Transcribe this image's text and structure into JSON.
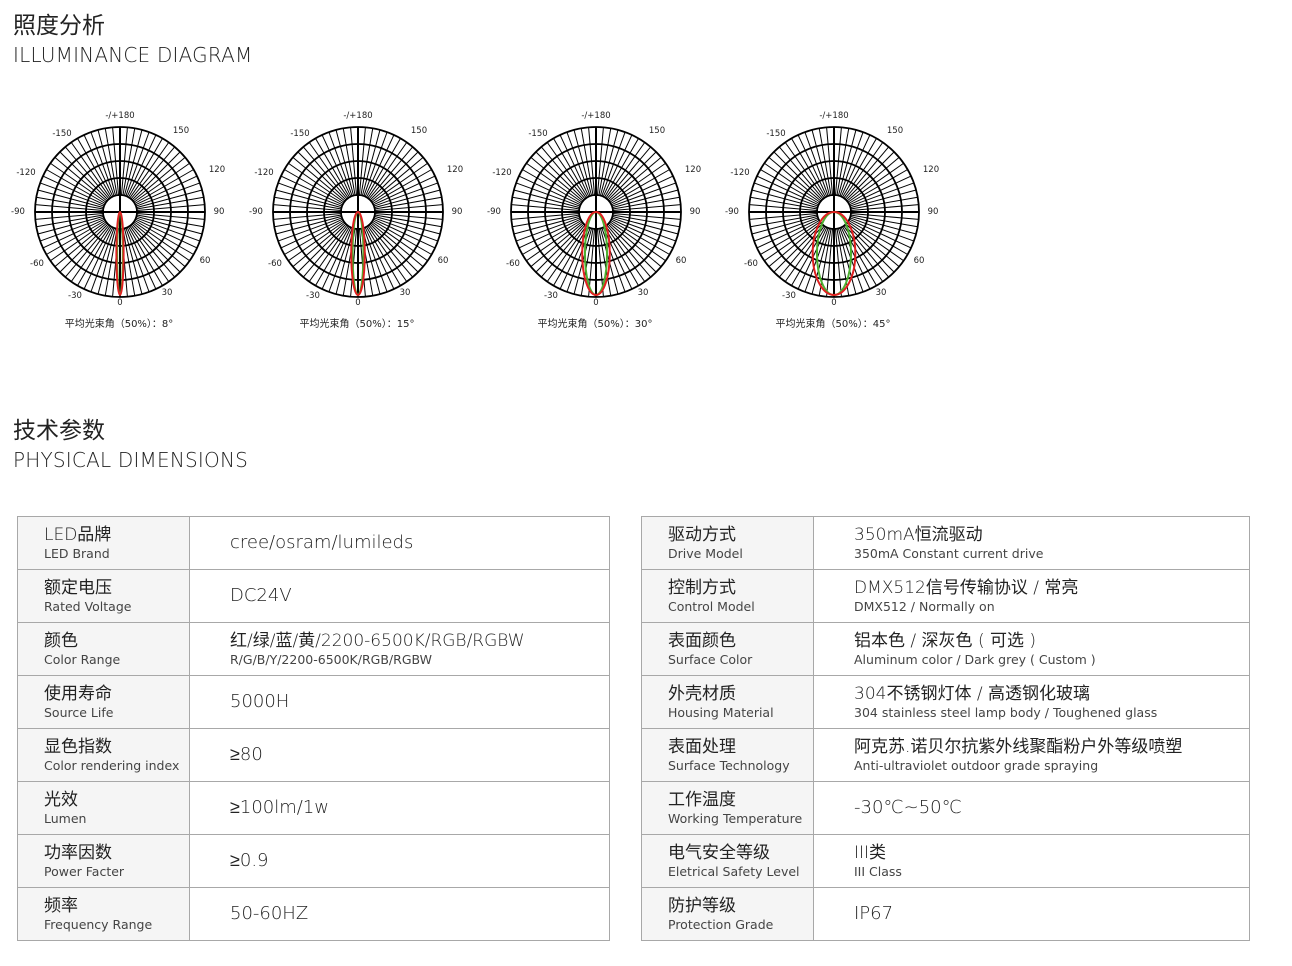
{
  "illuminance": {
    "title_cn": "照度分析",
    "title_en": "ILLUMINANCE DIAGRAM",
    "angle_labels": {
      "top": "-/+180",
      "n150": "-150",
      "p150": "150",
      "n120": "-120",
      "p120": "120",
      "n90": "-90",
      "p90": "90",
      "n60": "-60",
      "p60": "60",
      "n30": "-30",
      "p30": "30",
      "zero": "0"
    },
    "diagrams": [
      {
        "caption": "平均光束角（50%）：8°",
        "beam_angle": 8
      },
      {
        "caption": "平均光束角（50%）：15°",
        "beam_angle": 15
      },
      {
        "caption": "平均光束角（50%）：30°",
        "beam_angle": 30
      },
      {
        "caption": "平均光束角（50%）：45°",
        "beam_angle": 45
      }
    ],
    "colors": {
      "curve_a": "#e02020",
      "curve_b": "#4caf30"
    }
  },
  "specs": {
    "title_cn": "技术参数",
    "title_en": "PHYSICAL DIMENSIONS",
    "left": [
      {
        "cn": "LED品牌",
        "en": "LED Brand",
        "value": "cree/osram/lumileds",
        "value_en": ""
      },
      {
        "cn": "额定电压",
        "en": "Rated Voltage",
        "value": "DC24V",
        "value_en": ""
      },
      {
        "cn": "颜色",
        "en": "Color Range",
        "value": "红/绿/蓝/黄/2200-6500K/RGB/RGBW",
        "value_en": "R/G/B/Y/2200-6500K/RGB/RGBW"
      },
      {
        "cn": "使用寿命",
        "en": "Source Life",
        "value": "5000H",
        "value_en": ""
      },
      {
        "cn": "显色指数",
        "en": "Color rendering index",
        "value": "≥80",
        "value_en": ""
      },
      {
        "cn": "光效",
        "en": "Lumen",
        "value": "≥100lm/1w",
        "value_en": ""
      },
      {
        "cn": "功率因数",
        "en": "Power Facter",
        "value": "≥0.9",
        "value_en": ""
      },
      {
        "cn": "频率",
        "en": "Frequency Range",
        "value": "50-60HZ",
        "value_en": ""
      }
    ],
    "right": [
      {
        "cn": "驱动方式",
        "en": "Drive Model",
        "value": "350mA恒流驱动",
        "value_en": "350mA Constant current drive"
      },
      {
        "cn": "控制方式",
        "en": "Control Model",
        "value": "DMX512信号传输协议 / 常亮",
        "value_en": "DMX512 / Normally on"
      },
      {
        "cn": "表面颜色",
        "en": "Surface Color",
        "value": "铝本色 / 深灰色 ( 可选 )",
        "value_en": "Aluminum color / Dark grey ( Custom )"
      },
      {
        "cn": "外壳材质",
        "en": "Housing Material",
        "value": "304不锈钢灯体 / 高透钢化玻璃",
        "value_en": "304 stainless steel lamp body / Toughened glass"
      },
      {
        "cn": "表面处理",
        "en": "Surface Technology",
        "value": "阿克苏.诺贝尔抗紫外线聚酯粉户外等级喷塑",
        "value_en": "Anti-ultraviolet outdoor grade spraying"
      },
      {
        "cn": "工作温度",
        "en": "Working Temperature",
        "value": "-30℃~50℃",
        "value_en": ""
      },
      {
        "cn": "电气安全等级",
        "en": "Eletrical Safety Level",
        "value": "III类",
        "value_en": "III Class"
      },
      {
        "cn": "防护等级",
        "en": "Protection Grade",
        "value": "IP67",
        "value_en": ""
      }
    ]
  }
}
